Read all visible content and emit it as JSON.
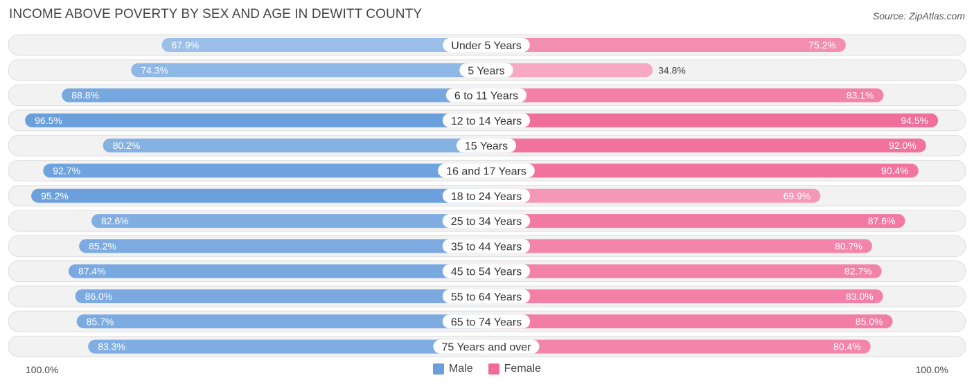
{
  "title": "INCOME ABOVE POVERTY BY SEX AND AGE IN DEWITT COUNTY",
  "source": "Source: ZipAtlas.com",
  "axis": {
    "left_label": "100.0%",
    "right_label": "100.0%"
  },
  "legend": {
    "male_label": "Male",
    "female_label": "Female"
  },
  "colors": {
    "male_strong": "#6a9fdc",
    "male_light": "#a9c8ec",
    "female_strong": "#f06b98",
    "female_light": "#f7a8c2",
    "row_bg": "#f2f2f2",
    "row_border": "#dddddd"
  },
  "chart_data": {
    "type": "bar",
    "orientation": "horizontal-diverging",
    "title": "INCOME ABOVE POVERTY BY SEX AND AGE IN DEWITT COUNTY",
    "xlim": [
      0,
      100
    ],
    "categories": [
      "Under 5 Years",
      "5 Years",
      "6 to 11 Years",
      "12 to 14 Years",
      "15 Years",
      "16 and 17 Years",
      "18 to 24 Years",
      "25 to 34 Years",
      "35 to 44 Years",
      "45 to 54 Years",
      "55 to 64 Years",
      "65 to 74 Years",
      "75 Years and over"
    ],
    "series": [
      {
        "name": "Male",
        "values": [
          67.9,
          74.3,
          88.8,
          96.5,
          80.2,
          92.7,
          95.2,
          82.6,
          85.2,
          87.4,
          86.0,
          85.7,
          83.3
        ]
      },
      {
        "name": "Female",
        "values": [
          75.2,
          34.8,
          83.1,
          94.5,
          92.0,
          90.4,
          69.9,
          87.6,
          80.7,
          82.7,
          83.0,
          85.0,
          80.4
        ]
      }
    ],
    "value_labels": {
      "Male": [
        "67.9%",
        "74.3%",
        "88.8%",
        "96.5%",
        "80.2%",
        "92.7%",
        "95.2%",
        "82.6%",
        "85.2%",
        "87.4%",
        "86.0%",
        "85.7%",
        "83.3%"
      ],
      "Female": [
        "75.2%",
        "34.8%",
        "83.1%",
        "94.5%",
        "92.0%",
        "90.4%",
        "69.9%",
        "87.6%",
        "80.7%",
        "82.7%",
        "83.0%",
        "85.0%",
        "80.4%"
      ]
    }
  }
}
